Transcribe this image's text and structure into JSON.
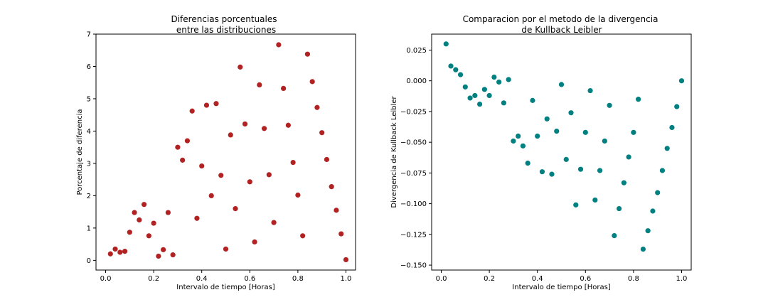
{
  "figure": {
    "background": "#ffffff"
  },
  "chart_data": [
    {
      "type": "scatter",
      "title": [
        "Diferencias porcentuales",
        "entre las distribuciones"
      ],
      "xlabel": "Intervalo de tiempo [Horas]",
      "ylabel": "Porcentaje de diferencia",
      "xlim": [
        -0.04,
        1.04
      ],
      "ylim": [
        -0.3,
        7.0
      ],
      "xticks": [
        0.0,
        0.2,
        0.4,
        0.6,
        0.8,
        1.0
      ],
      "xtick_labels": [
        "0.0",
        "0.2",
        "0.4",
        "0.6",
        "0.8",
        "1.0"
      ],
      "yticks": [
        0,
        1,
        2,
        3,
        4,
        5,
        6,
        7
      ],
      "ytick_labels": [
        "0",
        "1",
        "2",
        "3",
        "4",
        "5",
        "6",
        "7"
      ],
      "grid": false,
      "color": "#b22222",
      "x": [
        0.02,
        0.04,
        0.06,
        0.08,
        0.1,
        0.12,
        0.14,
        0.16,
        0.18,
        0.2,
        0.22,
        0.24,
        0.26,
        0.28,
        0.3,
        0.32,
        0.34,
        0.36,
        0.38,
        0.4,
        0.42,
        0.44,
        0.46,
        0.48,
        0.5,
        0.52,
        0.54,
        0.56,
        0.58,
        0.6,
        0.62,
        0.64,
        0.66,
        0.68,
        0.7,
        0.72,
        0.74,
        0.76,
        0.78,
        0.8,
        0.82,
        0.84,
        0.86,
        0.88,
        0.9,
        0.92,
        0.94,
        0.96,
        0.98,
        1.0
      ],
      "y": [
        0.2,
        0.35,
        0.25,
        0.28,
        0.87,
        1.48,
        1.25,
        1.73,
        0.76,
        1.15,
        0.13,
        0.33,
        1.48,
        0.17,
        3.5,
        3.1,
        3.7,
        4.62,
        1.3,
        2.92,
        4.8,
        2.0,
        4.85,
        2.63,
        0.35,
        3.88,
        1.6,
        5.98,
        4.22,
        2.43,
        0.57,
        5.43,
        4.08,
        2.65,
        1.17,
        6.67,
        5.32,
        4.18,
        3.03,
        2.02,
        0.76,
        6.38,
        5.53,
        4.73,
        3.95,
        3.12,
        2.28,
        1.55,
        0.82,
        0.02
      ]
    },
    {
      "type": "scatter",
      "title": [
        "Comparacion por el metodo de la divergencia",
        "de Kullback Leibler"
      ],
      "xlabel": "Intervalo de tiempo [Horas]",
      "ylabel": "Divergencia de Kullback Leibler",
      "xlim": [
        -0.04,
        1.04
      ],
      "ylim": [
        -0.154,
        0.038
      ],
      "xticks": [
        0.0,
        0.2,
        0.4,
        0.6,
        0.8,
        1.0
      ],
      "xtick_labels": [
        "0.0",
        "0.2",
        "0.4",
        "0.6",
        "0.8",
        "1.0"
      ],
      "yticks": [
        0.025,
        0.0,
        -0.025,
        -0.05,
        -0.075,
        -0.1,
        -0.125,
        -0.15
      ],
      "ytick_labels": [
        "0.025",
        "0.000",
        "−0.025",
        "−0.050",
        "−0.075",
        "−0.100",
        "−0.125",
        "−0.150"
      ],
      "grid": false,
      "color": "#008080",
      "x": [
        0.02,
        0.04,
        0.06,
        0.08,
        0.1,
        0.12,
        0.14,
        0.16,
        0.18,
        0.2,
        0.22,
        0.24,
        0.26,
        0.28,
        0.3,
        0.32,
        0.34,
        0.36,
        0.38,
        0.4,
        0.42,
        0.44,
        0.46,
        0.48,
        0.5,
        0.52,
        0.54,
        0.56,
        0.58,
        0.6,
        0.62,
        0.64,
        0.66,
        0.68,
        0.7,
        0.72,
        0.74,
        0.76,
        0.78,
        0.8,
        0.82,
        0.84,
        0.86,
        0.88,
        0.9,
        0.92,
        0.94,
        0.96,
        0.98,
        1.0
      ],
      "y": [
        0.03,
        0.012,
        0.009,
        0.005,
        -0.005,
        -0.014,
        -0.012,
        -0.019,
        -0.007,
        -0.012,
        0.003,
        -0.001,
        -0.018,
        0.001,
        -0.049,
        -0.045,
        -0.053,
        -0.067,
        -0.016,
        -0.045,
        -0.074,
        -0.031,
        -0.076,
        -0.041,
        -0.003,
        -0.064,
        -0.026,
        -0.101,
        -0.072,
        -0.042,
        -0.008,
        -0.097,
        -0.073,
        -0.049,
        -0.02,
        -0.126,
        -0.104,
        -0.083,
        -0.062,
        -0.042,
        -0.015,
        -0.137,
        -0.122,
        -0.106,
        -0.091,
        -0.073,
        -0.055,
        -0.038,
        -0.021,
        0.0
      ]
    }
  ]
}
